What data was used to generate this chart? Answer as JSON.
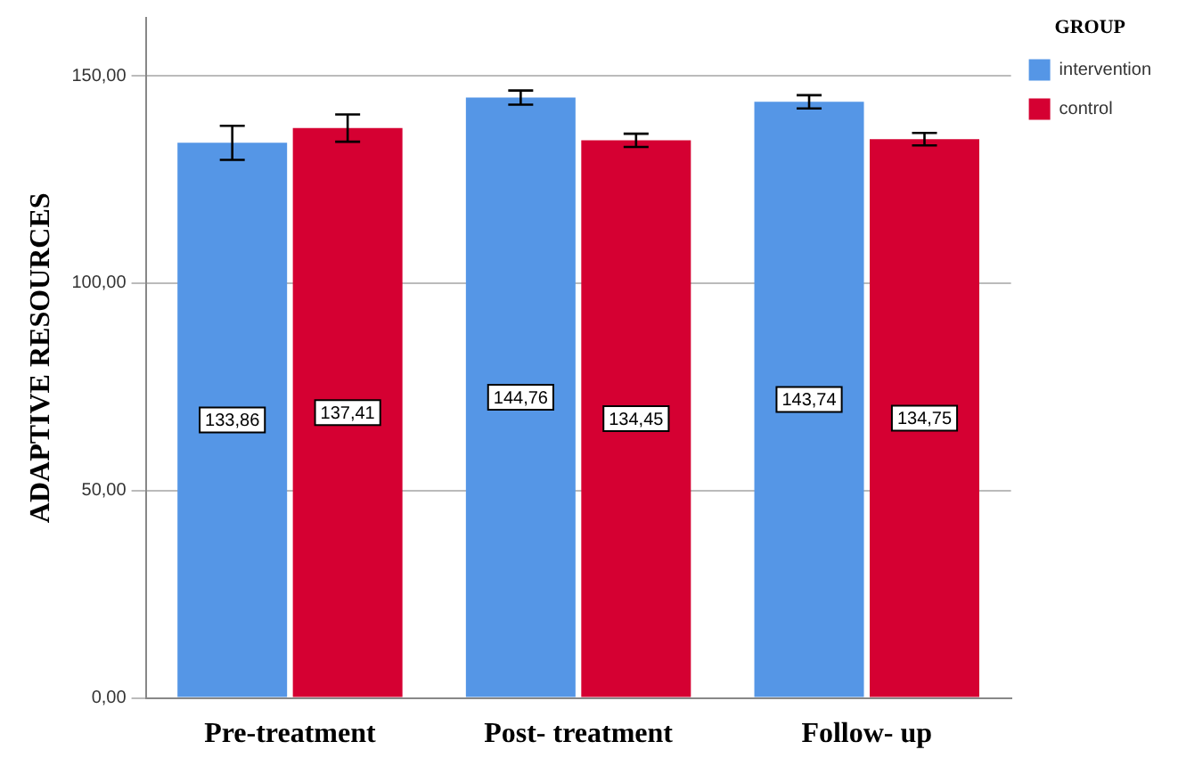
{
  "chart_data": {
    "type": "bar",
    "ylabel": "ADAPTIVE RESOURCES",
    "legend_title": "GROUP",
    "categories": [
      "Pre-treatment",
      "Post- treatment",
      "Follow- up"
    ],
    "series": [
      {
        "name": "intervention",
        "color": "#5596e6",
        "values": [
          133.86,
          144.76,
          143.74
        ],
        "errors": [
          4.1,
          1.7,
          1.6
        ],
        "value_labels": [
          "133,86",
          "144,76",
          "143,74"
        ]
      },
      {
        "name": "control",
        "color": "#d50032",
        "values": [
          137.41,
          134.45,
          134.75
        ],
        "errors": [
          3.3,
          1.6,
          1.5
        ],
        "value_labels": [
          "137,41",
          "134,45",
          "134,75"
        ]
      }
    ],
    "ylim": [
      0,
      164
    ],
    "yticks": [
      {
        "value": 0,
        "label": "0,00"
      },
      {
        "value": 50,
        "label": "50,00"
      },
      {
        "value": 100,
        "label": "100,00"
      },
      {
        "value": 150,
        "label": "150,00"
      }
    ],
    "grid": "y",
    "legend": "top right"
  }
}
